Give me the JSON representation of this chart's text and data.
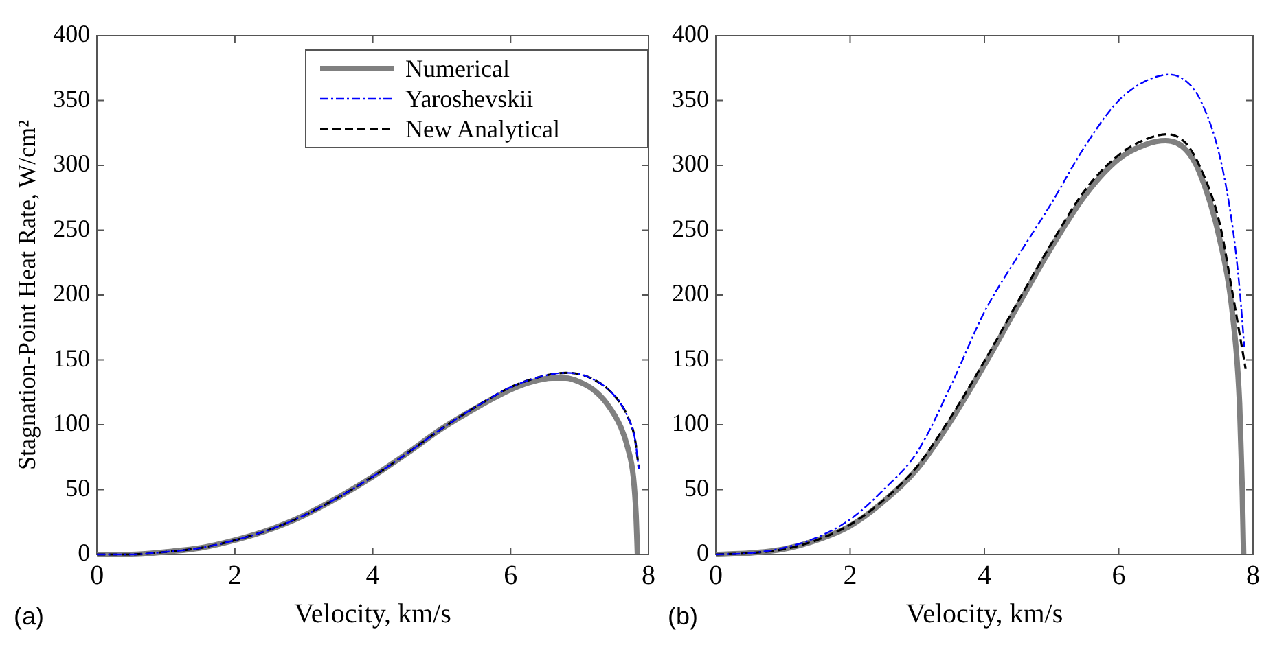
{
  "chart_data": [
    {
      "type": "line",
      "xlabel": "Velocity, km/s",
      "ylabel": "Stagnation-Point Heat Rate, W/cm²",
      "xlim": [
        0,
        8
      ],
      "xticks": [
        0,
        2,
        4,
        6,
        8
      ],
      "ylim": [
        0,
        400
      ],
      "yticks": [
        0,
        50,
        100,
        150,
        200,
        250,
        300,
        350,
        400
      ],
      "grid": false,
      "legend": "top right",
      "annotations": [
        "(a)"
      ],
      "series": [
        {
          "name": "Numerical",
          "color": "#808080",
          "line_style": "solid",
          "x": [
            0,
            0.5,
            1,
            1.5,
            2,
            2.5,
            3,
            3.5,
            4,
            4.5,
            5,
            5.5,
            6,
            6.3,
            6.6,
            6.8,
            7,
            7.2,
            7.4,
            7.6,
            7.7,
            7.78,
            7.82,
            7.84
          ],
          "values": [
            0,
            0,
            2,
            5,
            11,
            19,
            30,
            44,
            60,
            78,
            97,
            113,
            127,
            133,
            136,
            136,
            133,
            127,
            116,
            98,
            82,
            60,
            30,
            0
          ]
        },
        {
          "name": "Yaroshevskii",
          "color": "#0000ff",
          "line_style": "dashdot",
          "x": [
            0,
            0.5,
            1,
            1.5,
            2,
            2.5,
            3,
            3.5,
            4,
            4.5,
            5,
            5.5,
            6,
            6.3,
            6.6,
            6.8,
            7,
            7.2,
            7.4,
            7.6,
            7.7,
            7.8,
            7.86
          ],
          "values": [
            0,
            0,
            2,
            5,
            11,
            19,
            30,
            44,
            60,
            78,
            97,
            114,
            129,
            135,
            139,
            140,
            139,
            135,
            128,
            116,
            106,
            90,
            66
          ]
        },
        {
          "name": "New Analytical",
          "color": "#000000",
          "line_style": "dashed",
          "x": [
            0,
            0.5,
            1,
            1.5,
            2,
            2.5,
            3,
            3.5,
            4,
            4.5,
            5,
            5.5,
            6,
            6.3,
            6.6,
            6.8,
            7,
            7.2,
            7.4,
            7.6,
            7.7,
            7.8,
            7.86
          ],
          "values": [
            0,
            0,
            2,
            5,
            11,
            19,
            30,
            44,
            60,
            78,
            97,
            114,
            129,
            135,
            139,
            140,
            139,
            135,
            128,
            116,
            106,
            90,
            66
          ]
        }
      ]
    },
    {
      "type": "line",
      "xlabel": "Velocity, km/s",
      "xlim": [
        0,
        8
      ],
      "xticks": [
        0,
        2,
        4,
        6,
        8
      ],
      "ylim": [
        0,
        400
      ],
      "yticks": [
        0,
        50,
        100,
        150,
        200,
        250,
        300,
        350,
        400
      ],
      "grid": false,
      "annotations": [
        "(b)"
      ],
      "series": [
        {
          "color": "#808080",
          "line_style": "solid",
          "x": [
            0,
            0.5,
            1,
            1.5,
            2,
            2.5,
            3,
            3.5,
            4,
            4.5,
            5,
            5.5,
            6,
            6.4,
            6.7,
            7,
            7.2,
            7.5,
            7.7,
            7.8,
            7.84,
            7.86
          ],
          "values": [
            0,
            1,
            4,
            11,
            22,
            41,
            66,
            103,
            146,
            192,
            237,
            277,
            305,
            316,
            319,
            312,
            295,
            244,
            183,
            116,
            49,
            0
          ]
        },
        {
          "color": "#0000ff",
          "line_style": "dashdot",
          "x": [
            0,
            0.5,
            1,
            1.5,
            2,
            2.5,
            3,
            3.5,
            4,
            4.5,
            5,
            5.5,
            6,
            6.4,
            6.76,
            7,
            7.2,
            7.5,
            7.7,
            7.8,
            7.87
          ],
          "values": [
            0,
            1,
            5,
            13,
            27,
            50,
            79,
            130,
            187,
            230,
            271,
            315,
            350,
            365,
            370,
            365,
            352,
            308,
            251,
            205,
            160
          ]
        },
        {
          "color": "#000000",
          "line_style": "dashed",
          "x": [
            0,
            0.5,
            1,
            1.5,
            2,
            2.5,
            3,
            3.5,
            4,
            4.5,
            5,
            5.5,
            6,
            6.4,
            6.73,
            7,
            7.2,
            7.5,
            7.7,
            7.8,
            7.89
          ],
          "values": [
            0,
            1,
            4,
            11,
            23,
            42,
            68,
            106,
            149,
            195,
            240,
            281,
            308,
            320,
            324,
            317,
            300,
            256,
            200,
            170,
            143
          ]
        }
      ]
    }
  ]
}
